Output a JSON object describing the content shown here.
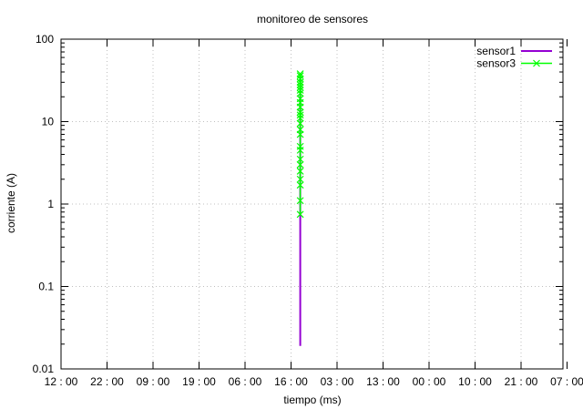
{
  "chart_data": {
    "type": "line",
    "title": "monitoreo de sensores",
    "xlabel": "tiempo (ms)",
    "ylabel": "corriente (A)",
    "yscale": "log",
    "ylim": [
      0.01,
      100
    ],
    "y_ticks": [
      {
        "value": 0.01,
        "label": "0.01"
      },
      {
        "value": 0.1,
        "label": "0.1"
      },
      {
        "value": 1,
        "label": "1"
      },
      {
        "value": 10,
        "label": "10"
      },
      {
        "value": 100,
        "label": "100"
      }
    ],
    "x_ticks": [
      "12 : 00",
      "22 : 00",
      "09 : 00",
      "19 : 00",
      "06 : 00",
      "16 : 00",
      "03 : 00",
      "13 : 00",
      "00 : 00",
      "10 : 00",
      "21 : 00",
      "07 : 00"
    ],
    "grid": true,
    "legend_position": "top-right",
    "series": [
      {
        "name": "sensor1",
        "color": "#9400d3",
        "marker": "none",
        "x_tick_index": 5.2,
        "y_min": 0.019,
        "y_max": 38
      },
      {
        "name": "sensor3",
        "color": "#00ff00",
        "marker": "x",
        "x_tick_index": 5.2,
        "values": [
          0.75,
          1.1,
          1.7,
          2.0,
          2.5,
          3.0,
          3.5,
          4.5,
          5.0,
          7.0,
          8.0,
          9.5,
          11,
          12,
          13,
          15,
          17,
          19,
          22,
          24,
          26,
          28,
          30,
          33,
          36,
          38
        ]
      }
    ]
  }
}
